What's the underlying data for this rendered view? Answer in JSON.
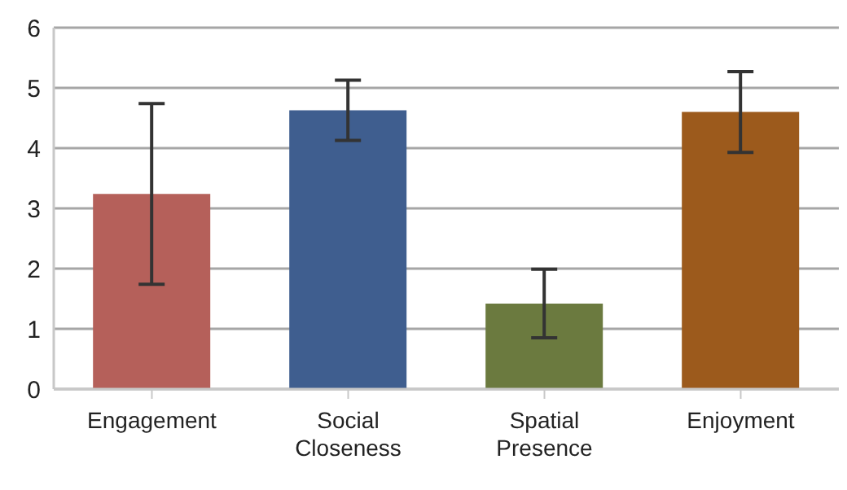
{
  "chart_data": {
    "type": "bar",
    "categories": [
      "Engagement",
      "Social Closeness",
      "Spatial Presence",
      "Enjoyment"
    ],
    "values": [
      3.24,
      4.63,
      1.42,
      4.6
    ],
    "errors": [
      1.5,
      0.5,
      0.57,
      0.67
    ],
    "colors": [
      "#b5605a",
      "#3f5e8f",
      "#6b7a3f",
      "#9c5a1c"
    ],
    "ylim": [
      0,
      6
    ],
    "yticks": [
      0,
      1,
      2,
      3,
      4,
      5,
      6
    ],
    "grid": "y",
    "legend": false
  }
}
